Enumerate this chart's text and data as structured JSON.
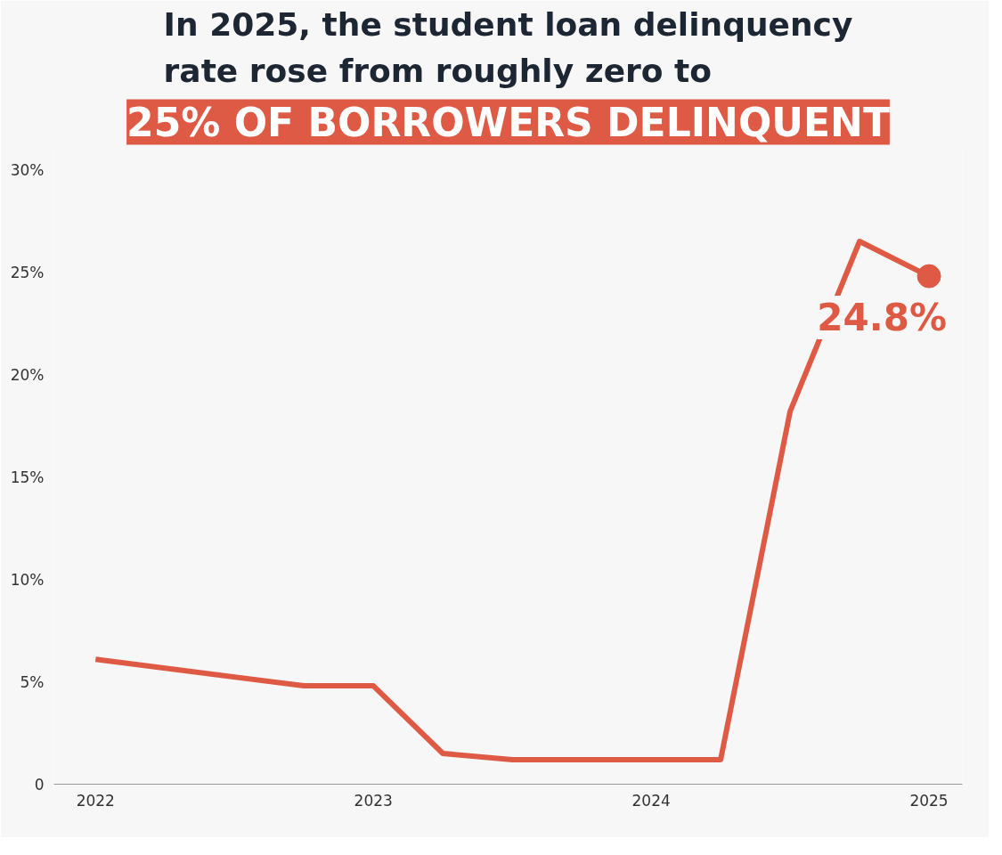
{
  "chart_data": {
    "type": "line",
    "title": "In 2025, the student loan delinquency rate rose from roughly zero to",
    "subtitle": "25% OF BORROWERS DELINQUENT",
    "x": [
      2022,
      2022.75,
      2023,
      2023.25,
      2023.5,
      2024.25,
      2024.5,
      2024.75,
      2025
    ],
    "series": [
      {
        "color": "#de5a45",
        "values": [
          6.1,
          4.8,
          4.8,
          1.5,
          1.2,
          1.2,
          18.2,
          26.5,
          24.8
        ]
      }
    ],
    "xlim": [
      2021.85,
      2025.12
    ],
    "xticks": [
      2022,
      2023,
      2024,
      2025
    ],
    "ylim": [
      0,
      31
    ],
    "yticks": [
      {
        "value": 0,
        "label": "0"
      },
      {
        "value": 5,
        "label": "5%"
      },
      {
        "value": 10,
        "label": "10%"
      },
      {
        "value": 15,
        "label": "15%"
      },
      {
        "value": 20,
        "label": "20%"
      },
      {
        "value": 25,
        "label": "25%"
      },
      {
        "value": 30,
        "label": "30%"
      }
    ],
    "annotations": [
      {
        "text": "24.8%",
        "x": 2025,
        "y": 24.8
      }
    ],
    "grid": false,
    "marker": "none",
    "line_style": "solid"
  }
}
